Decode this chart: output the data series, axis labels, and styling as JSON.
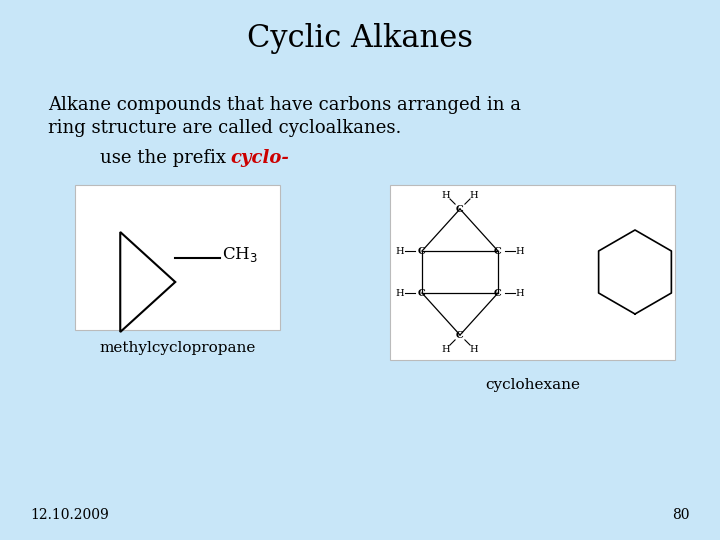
{
  "bg_color": "#c8e6f8",
  "title": "Cyclic Alkanes",
  "title_fontsize": 22,
  "body_text_1": "Alkane compounds that have carbons arranged in a",
  "body_text_2": "ring structure are called cycloalkanes.",
  "body_fontsize": 13,
  "prefix_text_before": "use the prefix ",
  "prefix_text_cyclo": "cyclo-",
  "prefix_fontsize": 13,
  "label1": "methylcyclopropane",
  "label2": "cyclohexane",
  "footer_date": "12.10.2009",
  "footer_page": "80",
  "footer_fontsize": 10,
  "text_color": "#000000",
  "red_color": "#cc0000",
  "line_color": "#000000",
  "white_color": "#ffffff"
}
